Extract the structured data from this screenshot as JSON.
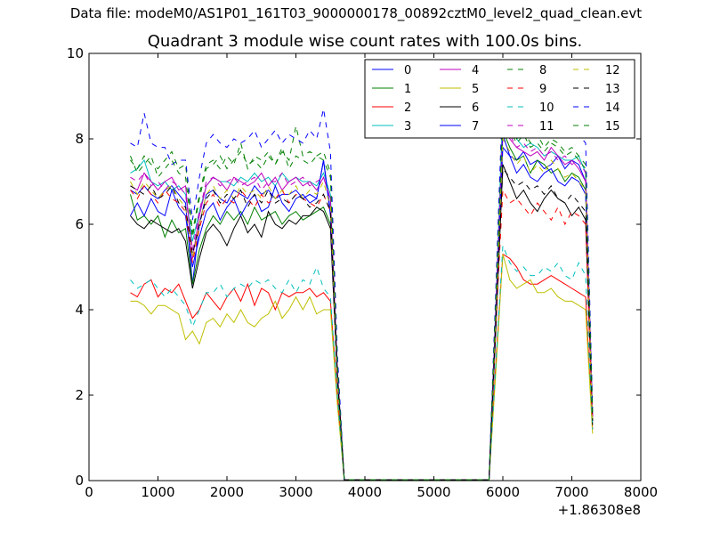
{
  "header": {
    "data_file": "Data file: modeM0/AS1P01_161T03_9000000178_00892cztM0_level2_quad_clean.evt"
  },
  "chart_data": {
    "type": "line",
    "title": "Quadrant 3 module wise count rates with 100.0s bins.",
    "xlabel": "",
    "ylabel": "",
    "x_offset_label": "+1.86308e8",
    "xlim": [
      0,
      8000
    ],
    "ylim": [
      0,
      10
    ],
    "xticks": [
      0,
      1000,
      2000,
      3000,
      4000,
      5000,
      6000,
      7000,
      8000
    ],
    "yticks": [
      0,
      2,
      4,
      6,
      8,
      10
    ],
    "grid": false,
    "legend_position": "top-right",
    "legend_columns": 4,
    "x": [
      600,
      700,
      800,
      900,
      1000,
      1100,
      1200,
      1300,
      1400,
      1500,
      1600,
      1700,
      1800,
      1900,
      2000,
      2100,
      2200,
      2300,
      2400,
      2500,
      2600,
      2700,
      2800,
      2900,
      3000,
      3100,
      3200,
      3300,
      3400,
      3500,
      3600,
      3700,
      3800,
      5800,
      5900,
      6000,
      6100,
      6200,
      6300,
      6400,
      6500,
      6600,
      6700,
      6800,
      6900,
      7000,
      7100,
      7200,
      7300
    ],
    "series": [
      {
        "name": "0",
        "color": "#0000ff",
        "dash": "solid",
        "values": [
          6.8,
          6.7,
          6.9,
          6.7,
          6.6,
          6.8,
          6.9,
          6.7,
          6.5,
          4.6,
          6.0,
          6.7,
          6.8,
          6.6,
          6.5,
          6.8,
          6.7,
          6.6,
          6.9,
          6.7,
          6.8,
          6.6,
          6.7,
          6.7,
          6.8,
          6.6,
          6.7,
          6.6,
          7.5,
          6.3,
          2.5,
          0.02,
          0.02,
          0.02,
          4.0,
          7.8,
          7.6,
          7.5,
          7.7,
          7.4,
          7.5,
          7.3,
          7.4,
          7.6,
          7.3,
          7.5,
          7.4,
          7.0,
          1.5
        ]
      },
      {
        "name": "1",
        "color": "#008000",
        "dash": "solid",
        "values": [
          6.7,
          6.1,
          6.2,
          6.0,
          6.2,
          5.7,
          6.1,
          5.8,
          5.9,
          4.6,
          5.4,
          5.9,
          6.2,
          6.0,
          6.3,
          6.1,
          6.3,
          6.0,
          6.4,
          6.1,
          6.2,
          6.3,
          6.0,
          6.2,
          6.3,
          6.1,
          6.2,
          6.3,
          6.4,
          6.0,
          2.5,
          0.02,
          0.02,
          0.02,
          3.8,
          8.2,
          7.8,
          7.5,
          7.6,
          7.2,
          7.5,
          7.4,
          7.2,
          7.3,
          7.0,
          7.2,
          7.1,
          6.8,
          1.4
        ]
      },
      {
        "name": "2",
        "color": "#ff0000",
        "dash": "solid",
        "values": [
          4.4,
          4.3,
          4.6,
          4.7,
          4.3,
          4.5,
          4.4,
          4.6,
          4.2,
          3.8,
          4.0,
          4.4,
          4.2,
          4.0,
          4.3,
          4.5,
          4.2,
          4.6,
          4.1,
          4.5,
          4.4,
          4.0,
          4.4,
          4.3,
          4.4,
          4.4,
          4.5,
          4.3,
          4.4,
          4.2,
          2.0,
          0.02,
          0.02,
          0.02,
          2.8,
          5.3,
          5.2,
          5.0,
          4.7,
          4.6,
          4.6,
          4.7,
          4.8,
          4.7,
          4.6,
          4.5,
          4.4,
          4.3,
          1.2
        ]
      },
      {
        "name": "3",
        "color": "#00bfbf",
        "dash": "solid",
        "values": [
          7.2,
          7.3,
          7.5,
          7.0,
          6.9,
          7.0,
          6.8,
          6.9,
          6.7,
          5.6,
          6.3,
          6.9,
          7.1,
          7.0,
          7.0,
          6.9,
          7.1,
          7.0,
          7.2,
          7.0,
          7.1,
          6.9,
          7.2,
          7.0,
          7.1,
          7.0,
          7.0,
          6.9,
          7.2,
          6.7,
          2.6,
          0.02,
          0.02,
          0.02,
          4.2,
          8.8,
          8.4,
          8.0,
          7.8,
          7.9,
          7.8,
          7.6,
          7.7,
          7.6,
          7.5,
          7.5,
          7.6,
          7.2,
          1.5
        ]
      },
      {
        "name": "4",
        "color": "#bf00bf",
        "dash": "solid",
        "values": [
          6.9,
          6.8,
          7.2,
          7.0,
          6.8,
          7.0,
          7.1,
          6.8,
          6.9,
          5.2,
          6.2,
          6.9,
          7.1,
          7.0,
          6.8,
          7.1,
          7.0,
          6.9,
          7.0,
          7.2,
          6.9,
          7.1,
          6.8,
          7.0,
          7.1,
          6.9,
          7.0,
          6.8,
          7.1,
          6.6,
          2.6,
          0.02,
          0.02,
          0.02,
          4.1,
          8.3,
          8.0,
          7.8,
          7.7,
          7.6,
          7.7,
          7.5,
          7.8,
          7.6,
          7.4,
          7.5,
          7.3,
          7.0,
          1.5
        ]
      },
      {
        "name": "5",
        "color": "#bfbf00",
        "dash": "solid",
        "values": [
          4.2,
          4.2,
          4.1,
          3.9,
          4.1,
          4.1,
          4.0,
          3.9,
          3.3,
          3.5,
          3.2,
          3.7,
          3.8,
          3.6,
          3.9,
          3.7,
          4.0,
          3.7,
          3.6,
          3.8,
          3.9,
          4.2,
          3.8,
          4.0,
          4.3,
          4.0,
          4.3,
          3.9,
          4.0,
          4.0,
          1.8,
          0.02,
          0.02,
          0.02,
          2.6,
          5.3,
          4.7,
          4.5,
          4.6,
          4.7,
          4.4,
          4.4,
          4.5,
          4.3,
          4.2,
          4.2,
          4.1,
          4.0,
          1.1
        ]
      },
      {
        "name": "6",
        "color": "#000000",
        "dash": "solid",
        "values": [
          6.2,
          6.0,
          5.9,
          6.1,
          6.0,
          5.9,
          5.8,
          5.9,
          5.6,
          4.5,
          5.2,
          5.8,
          6.0,
          5.8,
          5.5,
          5.9,
          6.2,
          5.8,
          6.0,
          5.7,
          6.3,
          6.0,
          5.9,
          6.1,
          6.0,
          6.2,
          6.2,
          6.4,
          6.3,
          5.9,
          2.4,
          0.02,
          0.02,
          0.02,
          3.6,
          7.4,
          7.0,
          6.6,
          6.8,
          6.5,
          6.3,
          6.6,
          6.8,
          6.6,
          6.5,
          6.2,
          6.4,
          6.1,
          1.3
        ]
      },
      {
        "name": "7",
        "color": "#0000ff",
        "dash": "solid",
        "values": [
          6.2,
          6.5,
          6.2,
          6.6,
          6.3,
          6.2,
          6.8,
          6.4,
          6.2,
          5.0,
          5.7,
          6.3,
          6.5,
          6.1,
          6.4,
          6.6,
          6.2,
          6.5,
          6.7,
          6.3,
          6.4,
          6.9,
          6.5,
          6.3,
          6.6,
          6.7,
          6.5,
          6.6,
          7.5,
          6.2,
          2.5,
          0.02,
          0.02,
          0.02,
          3.9,
          8.1,
          7.6,
          7.2,
          7.4,
          7.1,
          7.0,
          7.2,
          7.3,
          7.0,
          6.9,
          7.1,
          7.0,
          6.7,
          1.4
        ]
      },
      {
        "name": "8",
        "color": "#008000",
        "dash": "dashed",
        "values": [
          7.5,
          7.3,
          7.6,
          7.4,
          7.3,
          7.5,
          7.7,
          7.3,
          7.4,
          5.8,
          6.7,
          7.4,
          7.5,
          7.3,
          7.6,
          7.4,
          7.9,
          7.3,
          7.6,
          7.5,
          7.7,
          7.4,
          7.7,
          7.5,
          8.3,
          7.6,
          7.7,
          7.6,
          7.7,
          7.2,
          2.8,
          0.02,
          0.02,
          0.02,
          4.4,
          8.7,
          8.3,
          8.0,
          8.2,
          7.9,
          8.1,
          7.8,
          8.0,
          7.9,
          7.7,
          7.8,
          7.6,
          7.4,
          1.6
        ]
      },
      {
        "name": "9",
        "color": "#ff0000",
        "dash": "dashed",
        "values": [
          6.8,
          6.6,
          6.9,
          6.7,
          6.5,
          6.8,
          6.6,
          6.5,
          6.3,
          5.1,
          5.9,
          6.5,
          6.7,
          6.4,
          6.6,
          6.5,
          6.8,
          6.6,
          6.4,
          6.7,
          6.5,
          6.6,
          6.8,
          6.5,
          6.7,
          6.6,
          6.5,
          6.4,
          6.7,
          6.3,
          2.5,
          0.02,
          0.02,
          0.02,
          3.7,
          6.8,
          6.5,
          6.6,
          6.4,
          6.2,
          6.5,
          6.3,
          6.1,
          6.4,
          6.0,
          6.3,
          6.2,
          6.0,
          1.4
        ]
      },
      {
        "name": "10",
        "color": "#00bfbf",
        "dash": "dashed",
        "values": [
          4.7,
          4.5,
          4.6,
          4.7,
          4.5,
          4.3,
          4.5,
          4.3,
          4.1,
          3.6,
          4.0,
          4.4,
          4.4,
          4.6,
          4.3,
          4.5,
          4.6,
          4.5,
          4.7,
          4.6,
          4.7,
          4.5,
          4.4,
          4.7,
          4.4,
          4.7,
          4.6,
          5.0,
          4.5,
          4.3,
          2.0,
          0.02,
          0.02,
          0.02,
          2.8,
          5.5,
          5.1,
          4.9,
          5.0,
          4.8,
          4.8,
          5.0,
          4.9,
          5.1,
          4.8,
          4.7,
          5.1,
          4.8,
          1.2
        ]
      },
      {
        "name": "11",
        "color": "#bf00bf",
        "dash": "dashed",
        "values": [
          7.1,
          7.0,
          7.2,
          6.9,
          7.0,
          6.8,
          7.0,
          6.9,
          6.7,
          5.4,
          6.3,
          7.0,
          7.1,
          6.9,
          7.0,
          7.1,
          6.9,
          7.0,
          7.1,
          6.8,
          7.0,
          7.0,
          7.2,
          6.9,
          7.0,
          7.1,
          6.9,
          7.0,
          7.1,
          6.6,
          2.6,
          0.02,
          0.02,
          0.02,
          4.1,
          8.4,
          8.1,
          7.8,
          7.9,
          7.7,
          7.8,
          7.6,
          7.7,
          7.5,
          7.6,
          7.4,
          7.5,
          7.2,
          1.5
        ]
      },
      {
        "name": "12",
        "color": "#bfbf00",
        "dash": "dashed",
        "values": [
          7.0,
          6.7,
          7.0,
          6.8,
          6.6,
          6.8,
          6.9,
          6.6,
          6.4,
          5.2,
          6.0,
          6.7,
          6.9,
          6.6,
          6.8,
          6.6,
          6.9,
          6.7,
          6.8,
          6.6,
          6.9,
          6.6,
          6.8,
          6.7,
          6.9,
          6.6,
          6.8,
          6.7,
          7.0,
          6.4,
          2.5,
          0.02,
          0.02,
          0.02,
          3.9,
          8.0,
          7.7,
          7.4,
          7.6,
          7.2,
          7.4,
          7.2,
          7.5,
          7.3,
          7.1,
          7.2,
          7.0,
          6.8,
          1.4
        ]
      },
      {
        "name": "13",
        "color": "#000000",
        "dash": "dashed",
        "values": [
          6.9,
          6.8,
          6.7,
          6.9,
          6.6,
          6.7,
          6.9,
          6.5,
          6.4,
          5.3,
          6.0,
          6.6,
          6.8,
          6.5,
          6.7,
          6.6,
          6.8,
          6.4,
          6.7,
          6.5,
          6.8,
          6.5,
          6.6,
          6.5,
          6.7,
          6.6,
          6.4,
          6.5,
          6.7,
          6.3,
          2.5,
          0.02,
          0.02,
          0.02,
          3.8,
          7.3,
          7.1,
          6.9,
          7.0,
          6.8,
          6.9,
          6.7,
          6.9,
          6.6,
          6.5,
          6.7,
          6.5,
          6.3,
          1.4
        ]
      },
      {
        "name": "14",
        "color": "#0000ff",
        "dash": "dashed",
        "values": [
          7.9,
          7.8,
          8.6,
          7.9,
          7.8,
          7.8,
          7.4,
          7.5,
          7.5,
          6.1,
          7.1,
          7.9,
          8.1,
          7.9,
          7.8,
          8.0,
          7.9,
          8.0,
          8.2,
          7.8,
          8.0,
          8.2,
          7.9,
          8.1,
          8.0,
          7.9,
          8.2,
          8.0,
          8.7,
          7.7,
          3.0,
          0.02,
          0.02,
          0.02,
          4.6,
          9.2,
          8.9,
          8.6,
          8.8,
          8.5,
          8.6,
          8.4,
          8.6,
          8.3,
          8.2,
          8.4,
          8.1,
          7.9,
          1.7
        ]
      },
      {
        "name": "15",
        "color": "#008000",
        "dash": "dashed",
        "values": [
          7.6,
          7.2,
          7.4,
          7.6,
          7.1,
          7.3,
          7.5,
          7.2,
          7.1,
          5.7,
          6.6,
          7.3,
          7.4,
          7.6,
          7.3,
          7.5,
          7.7,
          7.4,
          7.5,
          7.3,
          7.6,
          7.4,
          7.8,
          7.3,
          7.6,
          7.5,
          7.4,
          7.6,
          7.5,
          7.1,
          2.7,
          0.02,
          0.02,
          0.02,
          4.3,
          8.5,
          8.2,
          7.9,
          8.1,
          7.8,
          7.9,
          7.7,
          7.9,
          7.8,
          7.6,
          7.7,
          7.5,
          7.3,
          1.6
        ]
      }
    ]
  }
}
